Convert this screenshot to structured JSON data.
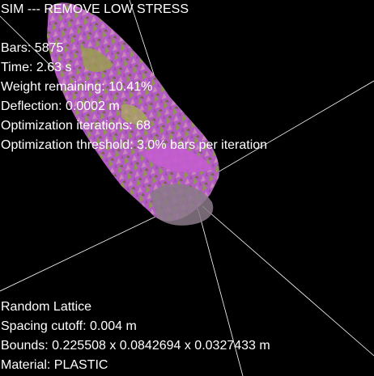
{
  "sim": {
    "title": "SIM --- REMOVE LOW STRESS",
    "bars": "Bars: 5875",
    "time": "Time: 2.63 s",
    "weight_remaining": "Weight remaining: 10.41%",
    "deflection": "Deflection: 0.0002 m",
    "iterations": "Optimization iterations: 68",
    "threshold": "Optimization threshold: 3.0% bars per iteration"
  },
  "lattice": {
    "type": "Random Lattice",
    "spacing_cutoff": "Spacing cutoff: 0.004 m",
    "bounds": "Bounds: 0.225508 x 0.0842694 x 0.0327433 m",
    "material": "Material: PLASTIC"
  },
  "colors": {
    "background": "#000000",
    "text": "#ffffff",
    "mesh_magenta": "#b45cc4",
    "mesh_pink": "#c888b8",
    "mesh_green": "#8a9a46",
    "mesh_olive": "#6e6a3a",
    "guide_lines": "#ffffff"
  }
}
